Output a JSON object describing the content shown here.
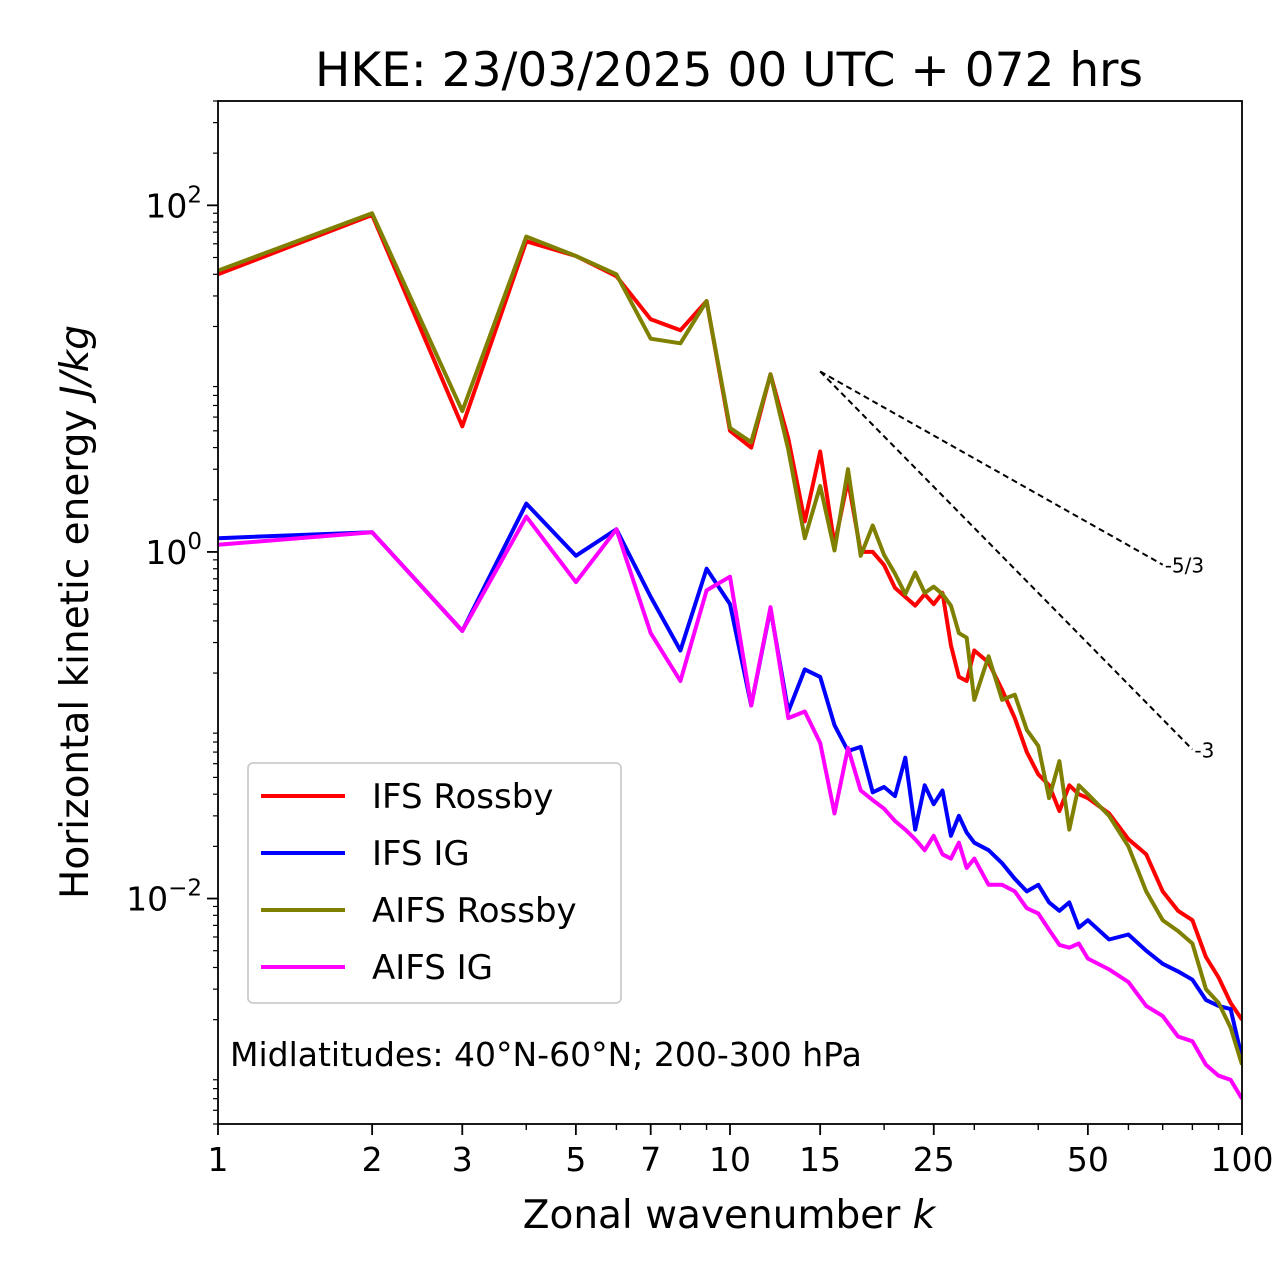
{
  "chart_data": {
    "type": "line",
    "title": "HKE: 23/03/2025 00 UTC + 072 hrs",
    "xlabel": "Zonal wavenumber",
    "xlabel_var": "k",
    "ylabel": "Horizontal kinetic energy",
    "ylabel_units": "J/kg",
    "xscale": "log",
    "yscale": "log",
    "xlim": [
      1,
      100
    ],
    "ylim": [
      0.0005,
      400
    ],
    "xticks": [
      1,
      2,
      3,
      5,
      7,
      10,
      15,
      25,
      50,
      100
    ],
    "xtick_labels": [
      "1",
      "2",
      "3",
      "5",
      "7",
      "10",
      "15",
      "25",
      "50",
      "100"
    ],
    "yticks": [
      {
        "value": 100,
        "base": "10",
        "exp": "2"
      },
      {
        "value": 1,
        "base": "10",
        "exp": "0"
      },
      {
        "value": 0.01,
        "base": "10",
        "exp": "−2"
      }
    ],
    "grid": false,
    "legend_position": "lower-left",
    "annotation": "Midlatitudes: 40°N-60°N; 200-300 hPa",
    "reference_lines": [
      {
        "label": "-5/3",
        "slope": -1.6667,
        "x_start": 15,
        "y_start": 11,
        "x_end": 70
      },
      {
        "label": "-3",
        "slope": -3,
        "x_start": 15,
        "y_start": 11,
        "x_end": 80
      }
    ],
    "series": [
      {
        "name": "IFS Rossby",
        "color": "#ff0000",
        "x": [
          1,
          2,
          3,
          4,
          5,
          6,
          7,
          8,
          9,
          10,
          11,
          12,
          13,
          14,
          15,
          16,
          17,
          18,
          19,
          20,
          21,
          22,
          23,
          24,
          25,
          26,
          27,
          28,
          29,
          30,
          32,
          34,
          36,
          38,
          40,
          42,
          44,
          46,
          48,
          50,
          55,
          60,
          65,
          70,
          75,
          80,
          85,
          90,
          95,
          100
        ],
        "y": [
          40,
          88,
          5.3,
          62,
          51,
          39,
          22,
          19,
          28,
          5.0,
          4.0,
          10.6,
          4.5,
          1.5,
          3.8,
          1.1,
          2.6,
          1.0,
          1.0,
          0.84,
          0.62,
          0.55,
          0.49,
          0.57,
          0.5,
          0.58,
          0.29,
          0.19,
          0.18,
          0.27,
          0.23,
          0.16,
          0.11,
          0.07,
          0.052,
          0.045,
          0.032,
          0.045,
          0.04,
          0.038,
          0.031,
          0.022,
          0.018,
          0.011,
          0.0085,
          0.0075,
          0.0046,
          0.0035,
          0.0025,
          0.002
        ]
      },
      {
        "name": "IFS IG",
        "color": "#0000ff",
        "x": [
          1,
          2,
          3,
          4,
          5,
          6,
          7,
          8,
          9,
          10,
          11,
          12,
          13,
          14,
          15,
          16,
          17,
          18,
          19,
          20,
          21,
          22,
          23,
          24,
          25,
          26,
          27,
          28,
          29,
          30,
          32,
          34,
          36,
          38,
          40,
          42,
          44,
          46,
          48,
          50,
          55,
          60,
          65,
          70,
          75,
          80,
          85,
          90,
          95,
          100
        ],
        "y": [
          1.2,
          1.3,
          0.35,
          1.9,
          0.95,
          1.35,
          0.55,
          0.27,
          0.8,
          0.5,
          0.13,
          0.47,
          0.12,
          0.21,
          0.19,
          0.1,
          0.071,
          0.075,
          0.041,
          0.044,
          0.039,
          0.065,
          0.025,
          0.045,
          0.035,
          0.042,
          0.023,
          0.03,
          0.024,
          0.021,
          0.019,
          0.016,
          0.013,
          0.011,
          0.012,
          0.0095,
          0.0085,
          0.0095,
          0.0068,
          0.0075,
          0.0058,
          0.0062,
          0.005,
          0.0042,
          0.0038,
          0.0034,
          0.0026,
          0.0024,
          0.0023,
          0.0012
        ]
      },
      {
        "name": "AIFS Rossby",
        "color": "#808000",
        "x": [
          1,
          2,
          3,
          4,
          5,
          6,
          7,
          8,
          9,
          10,
          11,
          12,
          13,
          14,
          15,
          16,
          17,
          18,
          19,
          20,
          21,
          22,
          23,
          24,
          25,
          26,
          27,
          28,
          29,
          30,
          32,
          34,
          36,
          38,
          40,
          42,
          44,
          46,
          48,
          50,
          55,
          60,
          65,
          70,
          75,
          80,
          85,
          90,
          95,
          100
        ],
        "y": [
          42,
          90,
          6.5,
          66,
          51,
          40,
          17,
          16,
          28,
          5.2,
          4.3,
          10.6,
          3.9,
          1.2,
          2.4,
          1.02,
          3.0,
          0.95,
          1.42,
          0.96,
          0.75,
          0.57,
          0.76,
          0.58,
          0.63,
          0.57,
          0.49,
          0.34,
          0.32,
          0.14,
          0.25,
          0.14,
          0.15,
          0.094,
          0.076,
          0.038,
          0.062,
          0.025,
          0.045,
          0.04,
          0.03,
          0.02,
          0.011,
          0.0075,
          0.0065,
          0.0055,
          0.003,
          0.0025,
          0.0018,
          0.0011
        ]
      },
      {
        "name": "AIFS IG",
        "color": "#ff00ff",
        "x": [
          1,
          2,
          3,
          4,
          5,
          6,
          7,
          8,
          9,
          10,
          11,
          12,
          13,
          14,
          15,
          16,
          17,
          18,
          19,
          20,
          21,
          22,
          23,
          24,
          25,
          26,
          27,
          28,
          29,
          30,
          32,
          34,
          36,
          38,
          40,
          42,
          44,
          46,
          48,
          50,
          55,
          60,
          65,
          70,
          75,
          80,
          85,
          90,
          95,
          100
        ],
        "y": [
          1.1,
          1.3,
          0.35,
          1.6,
          0.67,
          1.35,
          0.34,
          0.18,
          0.6,
          0.72,
          0.13,
          0.48,
          0.11,
          0.12,
          0.079,
          0.031,
          0.074,
          0.042,
          0.037,
          0.033,
          0.028,
          0.025,
          0.022,
          0.019,
          0.023,
          0.018,
          0.017,
          0.021,
          0.015,
          0.017,
          0.012,
          0.012,
          0.011,
          0.0088,
          0.0082,
          0.0066,
          0.0054,
          0.0052,
          0.0055,
          0.0045,
          0.0039,
          0.0033,
          0.0024,
          0.0021,
          0.0016,
          0.0015,
          0.0011,
          0.00095,
          0.0009,
          0.0007
        ]
      }
    ]
  }
}
